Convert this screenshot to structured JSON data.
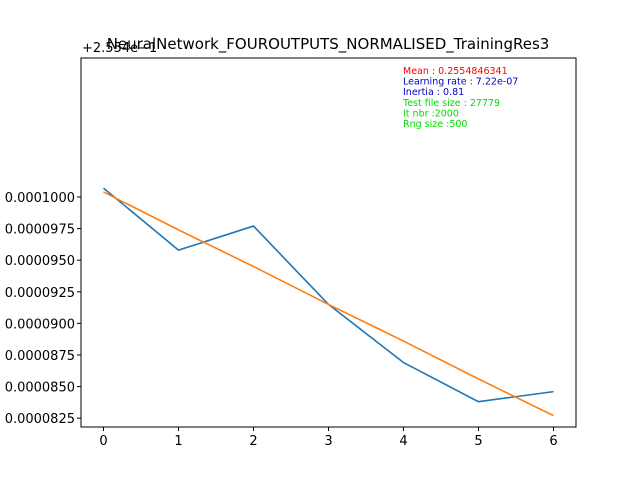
{
  "chart_data": {
    "type": "line",
    "title": "NeuralNetwork_FOUROUTPUTS_NORMALISED_TrainingRes3",
    "xlabel": "",
    "ylabel": "",
    "y_offset_label": "+2.554e−1",
    "x": [
      0,
      1,
      2,
      3,
      4,
      5,
      6
    ],
    "x_ticks": [
      "0",
      "1",
      "2",
      "3",
      "4",
      "5",
      "6"
    ],
    "y_ticks": [
      {
        "value": 8.25e-05,
        "label": "0.0000825"
      },
      {
        "value": 8.5e-05,
        "label": "0.0000850"
      },
      {
        "value": 8.75e-05,
        "label": "0.0000875"
      },
      {
        "value": 9e-05,
        "label": "0.0000900"
      },
      {
        "value": 9.25e-05,
        "label": "0.0000925"
      },
      {
        "value": 9.5e-05,
        "label": "0.0000950"
      },
      {
        "value": 9.75e-05,
        "label": "0.0000975"
      },
      {
        "value": 0.0001,
        "label": "0.0001000"
      }
    ],
    "xlim": [
      -0.3,
      6.3
    ],
    "ylim": [
      8.18e-05,
      0.000111
    ],
    "grid": false,
    "series": [
      {
        "color": "#1f77b4",
        "values": [
          0.0001007,
          9.58e-05,
          9.77e-05,
          9.15e-05,
          8.69e-05,
          8.38e-05,
          8.46e-05
        ]
      },
      {
        "color": "#ff7f0e",
        "values": [
          0.0001004,
          9.74e-05,
          9.45e-05,
          9.15e-05,
          8.86e-05,
          8.56e-05,
          8.27e-05
        ]
      }
    ],
    "annotations": [
      {
        "text": "Mean : 0.2554846341",
        "color": "#ff0000"
      },
      {
        "text": "Learning rate : 7.22e-07",
        "color": "#0000cc"
      },
      {
        "text": "Inertia : 0.81",
        "color": "#0000cc"
      },
      {
        "text": "Test file size : 27779",
        "color": "#00dd00"
      },
      {
        "text": "It nbr :2000",
        "color": "#00dd00"
      },
      {
        "text": "Rng size :500",
        "color": "#00dd00"
      }
    ]
  }
}
